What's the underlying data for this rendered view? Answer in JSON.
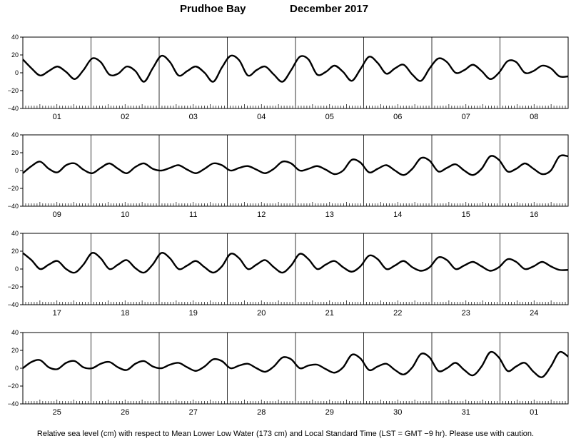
{
  "title": {
    "location": "Prudhoe Bay",
    "period": "December   2017"
  },
  "footnote": "Relative sea level (cm) with respect to Mean Lower Low Water (173 cm) and Local Standard Time (LST = GMT −9 hr). Please use with caution.",
  "chart_data": {
    "type": "line",
    "ylim": [
      -40,
      40
    ],
    "yticks": [
      -40,
      -20,
      0,
      20,
      40
    ],
    "ytick_labels": [
      "−40",
      "−20",
      "0",
      "20",
      "40"
    ],
    "x_unit": "hours per day",
    "grid": "vertical lines at day boundaries",
    "panels": [
      {
        "days": [
          "01",
          "02",
          "03",
          "04",
          "05",
          "06",
          "07",
          "08"
        ],
        "series": [
          {
            "values": [
              15,
              5,
              -3,
              2,
              7,
              1,
              -7,
              3,
              16,
              12,
              -2,
              -1,
              7,
              2,
              -10,
              5,
              19,
              12,
              -3,
              2,
              7,
              0,
              -10,
              6,
              19,
              14,
              -3,
              3,
              7,
              -2,
              -10,
              3,
              18,
              15,
              -2,
              1,
              8,
              1,
              -9,
              4,
              18,
              11,
              -1,
              5,
              9,
              -2,
              -9,
              5,
              16,
              12,
              0,
              3,
              9,
              2,
              -7,
              0,
              13,
              12,
              0,
              2,
              8,
              5,
              -4,
              -4
            ]
          }
        ]
      },
      {
        "days": [
          "09",
          "10",
          "11",
          "12",
          "13",
          "14",
          "15",
          "16"
        ],
        "series": [
          {
            "values": [
              -3,
              5,
              10,
              2,
              -2,
              6,
              8,
              1,
              -3,
              3,
              8,
              2,
              -3,
              4,
              8,
              2,
              0,
              3,
              6,
              1,
              -3,
              2,
              8,
              6,
              0,
              3,
              5,
              1,
              -3,
              2,
              10,
              8,
              0,
              2,
              5,
              1,
              -4,
              0,
              12,
              9,
              -2,
              2,
              6,
              0,
              -5,
              2,
              14,
              11,
              -1,
              3,
              7,
              0,
              -5,
              2,
              16,
              12,
              -1,
              2,
              8,
              2,
              -4,
              0,
              16,
              16
            ]
          }
        ]
      },
      {
        "days": [
          "17",
          "18",
          "19",
          "20",
          "21",
          "22",
          "23",
          "24"
        ],
        "series": [
          {
            "values": [
              18,
              10,
              0,
              5,
              9,
              0,
              -4,
              5,
              18,
              12,
              0,
              5,
              10,
              1,
              -4,
              5,
              18,
              12,
              0,
              4,
              9,
              2,
              -4,
              3,
              17,
              12,
              0,
              5,
              10,
              2,
              -4,
              4,
              17,
              11,
              0,
              5,
              9,
              2,
              -3,
              3,
              15,
              11,
              0,
              4,
              9,
              2,
              -2,
              2,
              13,
              10,
              0,
              4,
              8,
              3,
              -2,
              2,
              11,
              8,
              0,
              3,
              8,
              3,
              -1,
              -1
            ]
          }
        ]
      },
      {
        "days": [
          "25",
          "26",
          "27",
          "28",
          "29",
          "30",
          "31",
          "01"
        ],
        "series": [
          {
            "values": [
              0,
              7,
              9,
              1,
              -1,
              6,
              8,
              1,
              0,
              5,
              7,
              1,
              -2,
              5,
              8,
              2,
              0,
              4,
              6,
              1,
              -3,
              2,
              10,
              8,
              0,
              3,
              5,
              0,
              -4,
              2,
              12,
              10,
              0,
              3,
              4,
              -1,
              -5,
              1,
              15,
              11,
              -2,
              2,
              5,
              -2,
              -7,
              1,
              16,
              12,
              -3,
              0,
              6,
              -2,
              -8,
              2,
              18,
              12,
              -3,
              2,
              6,
              -4,
              -10,
              2,
              18,
              13
            ]
          }
        ]
      }
    ]
  }
}
